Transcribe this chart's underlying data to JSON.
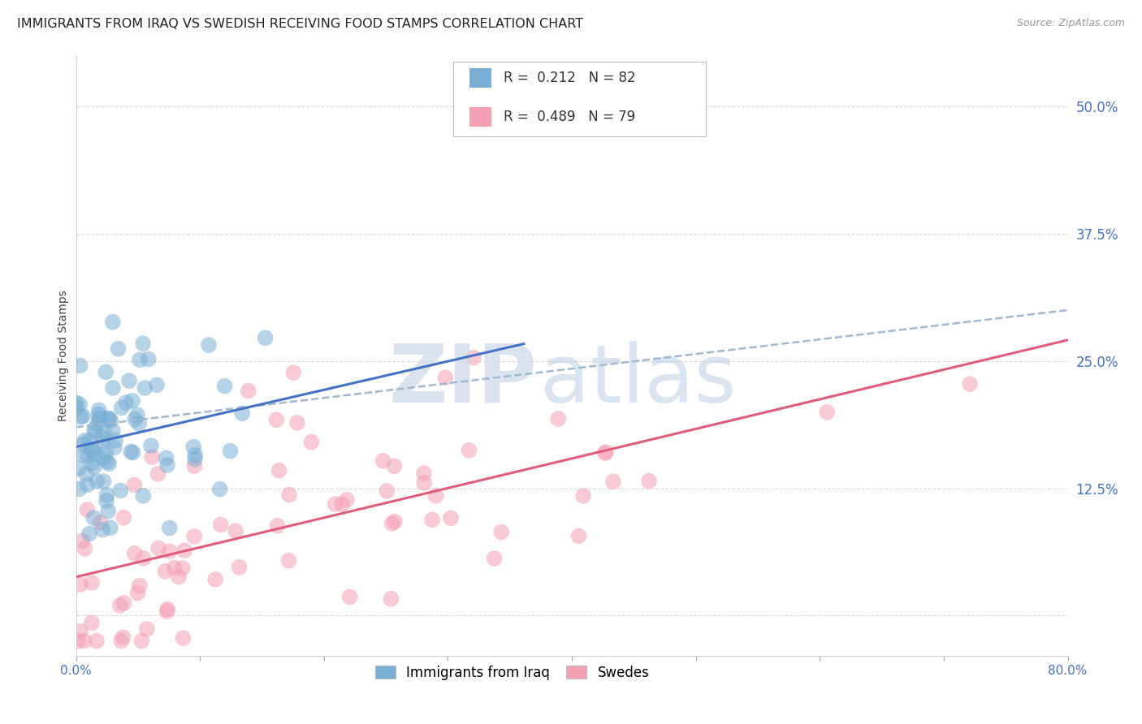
{
  "title": "IMMIGRANTS FROM IRAQ VS SWEDISH RECEIVING FOOD STAMPS CORRELATION CHART",
  "source": "Source: ZipAtlas.com",
  "ylabel": "Receiving Food Stamps",
  "xlim": [
    0.0,
    0.8
  ],
  "ylim": [
    -0.04,
    0.55
  ],
  "xticks": [
    0.0,
    0.1,
    0.2,
    0.3,
    0.4,
    0.5,
    0.6,
    0.7,
    0.8
  ],
  "xticklabels": [
    "0.0%",
    "",
    "",
    "",
    "",
    "",
    "",
    "",
    "80.0%"
  ],
  "yticks": [
    0.0,
    0.125,
    0.25,
    0.375,
    0.5
  ],
  "yticklabels": [
    "",
    "12.5%",
    "25.0%",
    "37.5%",
    "50.0%"
  ],
  "legend_label1": "Immigrants from Iraq",
  "legend_label2": "Swedes",
  "blue_color": "#7bafd4",
  "pink_color": "#f4a0b5",
  "blue_line_color": "#4472c4",
  "pink_line_color": "#e05c7a",
  "dashed_line_color": "#a0b8d0",
  "watermark_zip_color": "#ccd8e8",
  "watermark_atlas_color": "#b8cce0",
  "R_blue": 0.212,
  "N_blue": 82,
  "R_pink": 0.489,
  "N_pink": 79,
  "grid_color": "#d8d8d8",
  "background_color": "#ffffff",
  "title_fontsize": 11.5,
  "axis_label_fontsize": 10,
  "tick_fontsize": 11,
  "legend_fontsize": 12,
  "blue_line_start_y": 0.172,
  "blue_line_end_y": 0.205,
  "blue_line_end_x": 0.35,
  "pink_line_start_y": 0.055,
  "pink_line_end_y": 0.26,
  "dashed_line_start_y": 0.185,
  "dashed_line_end_y": 0.3,
  "dashed_line_end_x": 0.8
}
